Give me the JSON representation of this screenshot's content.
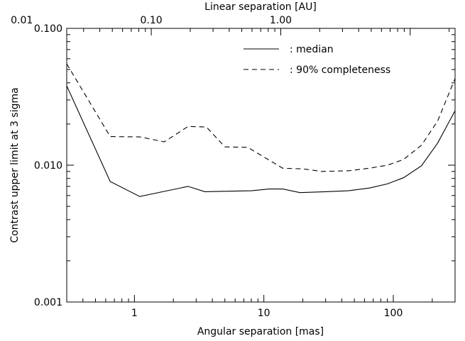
{
  "chart_data": {
    "type": "line",
    "xlabel": "Angular separation [mas]",
    "ylabel": "Contrast upper limit at 3 sigma",
    "top_xlabel": "Linear separation [AU]",
    "x_scale": "log",
    "y_scale": "log",
    "xlim": [
      0.3,
      300
    ],
    "ylim": [
      0.001,
      0.1
    ],
    "x_ticks": [
      {
        "value": 1,
        "label": "1"
      },
      {
        "value": 10,
        "label": "10"
      },
      {
        "value": 100,
        "label": "100"
      }
    ],
    "y_ticks": [
      {
        "value": 0.001,
        "label": "0.001"
      },
      {
        "value": 0.01,
        "label": "0.010"
      },
      {
        "value": 0.1,
        "label": "0.100"
      }
    ],
    "top_ticks": [
      {
        "value": 0.01,
        "label": "0.01"
      },
      {
        "value": 0.1,
        "label": "0.10"
      },
      {
        "value": 1.0,
        "label": "1.00"
      }
    ],
    "top_axis_mas_per_au": 13.5,
    "grid": false,
    "legend_position": "top-right",
    "series": [
      {
        "name": ": median",
        "style": "solid",
        "color": "#000000",
        "points": [
          [
            0.3,
            0.038
          ],
          [
            0.65,
            0.0076
          ],
          [
            1.1,
            0.0059
          ],
          [
            2.6,
            0.007
          ],
          [
            3.5,
            0.0064
          ],
          [
            5,
            0.00645
          ],
          [
            8,
            0.0065
          ],
          [
            11,
            0.0067
          ],
          [
            14,
            0.0067
          ],
          [
            19,
            0.0063
          ],
          [
            30,
            0.0064
          ],
          [
            45,
            0.0065
          ],
          [
            65,
            0.0068
          ],
          [
            90,
            0.0073
          ],
          [
            120,
            0.0081
          ],
          [
            165,
            0.0099
          ],
          [
            220,
            0.0145
          ],
          [
            300,
            0.025
          ]
        ]
      },
      {
        "name": ": 90% completeness",
        "style": "dashed",
        "color": "#000000",
        "points": [
          [
            0.3,
            0.055
          ],
          [
            0.65,
            0.0162
          ],
          [
            1.1,
            0.0161
          ],
          [
            1.7,
            0.0148
          ],
          [
            2.6,
            0.0192
          ],
          [
            3.6,
            0.019
          ],
          [
            5,
            0.0136
          ],
          [
            7.5,
            0.0135
          ],
          [
            14,
            0.0095
          ],
          [
            20,
            0.0094
          ],
          [
            28,
            0.009
          ],
          [
            45,
            0.0091
          ],
          [
            65,
            0.0095
          ],
          [
            90,
            0.01
          ],
          [
            120,
            0.011
          ],
          [
            165,
            0.014
          ],
          [
            220,
            0.021
          ],
          [
            300,
            0.043
          ]
        ]
      }
    ]
  }
}
